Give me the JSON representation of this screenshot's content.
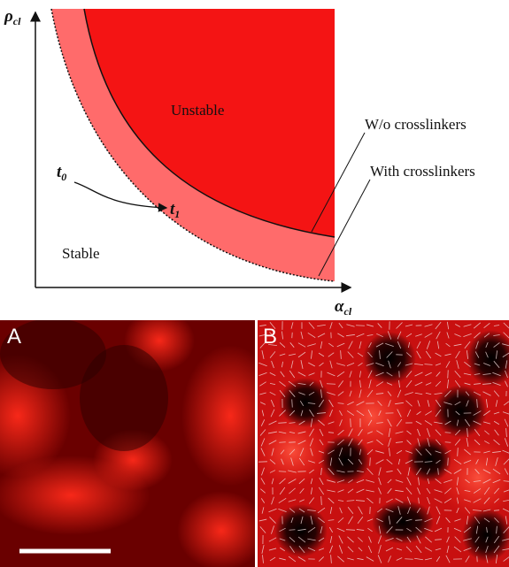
{
  "diagram": {
    "y_axis_label": {
      "symbol": "ρ",
      "subscript": "cl"
    },
    "x_axis_label": {
      "symbol": "α",
      "subscript": "cl"
    },
    "regions": {
      "unstable": "Unstable",
      "stable": "Stable"
    },
    "curves": {
      "without": "W/o crosslinkers",
      "with": "With crosslinkers"
    },
    "path_start": {
      "symbol": "t",
      "subscript": "0"
    },
    "path_end": {
      "symbol": "t",
      "subscript": "1"
    }
  },
  "panels": {
    "a": "A",
    "b": "B"
  }
}
